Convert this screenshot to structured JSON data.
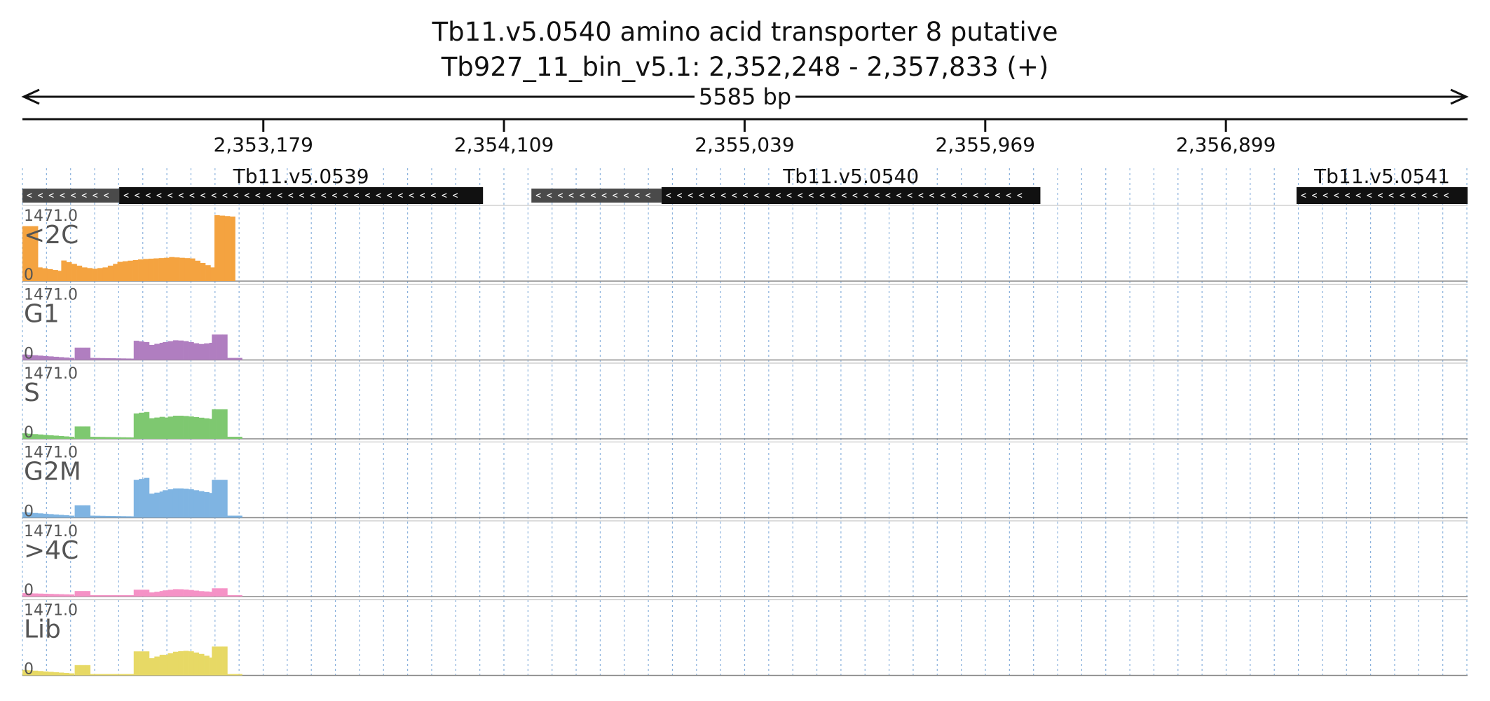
{
  "title_line1": "Tb11.v5.0540  amino acid transporter 8  putative",
  "title_line2": "Tb927_11_bin_v5.1: 2,352,248 - 2,357,833 (+)",
  "chart_data": {
    "type": "area",
    "region": {
      "chrom": "Tb927_11_bin_v5.1",
      "start": 2352248,
      "end": 2357833,
      "strand": "+",
      "length_label": "5585 bp"
    },
    "axis_ticks": [
      {
        "pos": 2353179,
        "label": "2,353,179"
      },
      {
        "pos": 2354109,
        "label": "2,354,109"
      },
      {
        "pos": 2355039,
        "label": "2,355,039"
      },
      {
        "pos": 2355969,
        "label": "2,355,969"
      },
      {
        "pos": 2356899,
        "label": "2,356,899"
      }
    ],
    "genes": [
      {
        "label": "Tb11.v5.0539",
        "strand": "-",
        "utr": [
          2352248,
          2352622
        ],
        "cds": [
          2352622,
          2354028
        ]
      },
      {
        "label": "Tb11.v5.0540",
        "strand": "-",
        "utr": [
          2354215,
          2354718
        ],
        "cds": [
          2354718,
          2356182
        ]
      },
      {
        "label": "Tb11.v5.0541",
        "strand": "-",
        "utr": [],
        "cds": [
          2357172,
          2357833
        ]
      }
    ],
    "y_max": 1471.0,
    "y_max_label": "1471.0",
    "y_min_label": "0",
    "bin_bp": 20,
    "tracks": [
      {
        "name": "<2C",
        "color": "#f4a340",
        "segments": [
          [
            2352248,
            2352305,
            [
              8,
              8
            ]
          ],
          [
            2352305,
            2352398,
            [
              2,
              1.5
            ]
          ],
          [
            2352398,
            2352615,
            [
              3,
              2.5,
              2,
              1.8,
              2,
              2.5
            ]
          ],
          [
            2352615,
            2352815,
            [
              2.8,
              3.2,
              3.4
            ]
          ],
          [
            2352815,
            2352990,
            [
              3.5,
              3.3,
              2
            ]
          ],
          [
            2352990,
            2353060,
            [
              9.6,
              9.4
            ]
          ]
        ]
      },
      {
        "name": "G1",
        "color": "#b07ec0",
        "segments": [
          [
            2352248,
            2352450,
            [
              0.8,
              0.3
            ]
          ],
          [
            2352450,
            2352508,
            [
              1.8,
              1.8
            ]
          ],
          [
            2352508,
            2352678,
            [
              0.3,
              0.2
            ]
          ],
          [
            2352678,
            2352738,
            [
              2.8,
              2.6
            ]
          ],
          [
            2352738,
            2352790,
            [
              2.2,
              2.5
            ]
          ],
          [
            2352790,
            2352980,
            [
              2.6,
              2.9,
              2.7,
              2.3,
              2.5
            ]
          ],
          [
            2352980,
            2353037,
            [
              3.7,
              3.7
            ]
          ],
          [
            2353037,
            2353090,
            [
              0.3,
              0.3
            ]
          ]
        ]
      },
      {
        "name": "S",
        "color": "#7ec870",
        "segments": [
          [
            2352248,
            2352450,
            [
              0.8,
              0.3
            ]
          ],
          [
            2352450,
            2352508,
            [
              1.8,
              1.8
            ]
          ],
          [
            2352508,
            2352678,
            [
              0.3,
              0.2
            ]
          ],
          [
            2352678,
            2352738,
            [
              3.7,
              3.9
            ]
          ],
          [
            2352738,
            2352790,
            [
              3.0,
              3.2
            ]
          ],
          [
            2352790,
            2352980,
            [
              3.1,
              3.4,
              3.3,
              3.1,
              2.9
            ]
          ],
          [
            2352980,
            2353037,
            [
              4.3,
              4.3
            ]
          ],
          [
            2353037,
            2353090,
            [
              0.3,
              0.3
            ]
          ]
        ]
      },
      {
        "name": "G2M",
        "color": "#7fb4e2",
        "segments": [
          [
            2352248,
            2352450,
            [
              0.8,
              0.3
            ]
          ],
          [
            2352450,
            2352508,
            [
              1.8,
              1.8
            ]
          ],
          [
            2352508,
            2352678,
            [
              0.3,
              0.2
            ]
          ],
          [
            2352678,
            2352738,
            [
              5.5,
              5.8
            ]
          ],
          [
            2352738,
            2352790,
            [
              3.5,
              3.8
            ]
          ],
          [
            2352790,
            2352980,
            [
              4.0,
              4.3,
              4.2,
              3.9,
              3.6
            ]
          ],
          [
            2352980,
            2353037,
            [
              5.5,
              5.5
            ]
          ],
          [
            2353037,
            2353090,
            [
              0.3,
              0.3
            ]
          ]
        ]
      },
      {
        "name": ">4C",
        "color": "#f592c6",
        "segments": [
          [
            2352248,
            2352450,
            [
              0.5,
              0.3
            ]
          ],
          [
            2352450,
            2352508,
            [
              0.8,
              0.8
            ]
          ],
          [
            2352508,
            2352678,
            [
              0.2,
              0.2
            ]
          ],
          [
            2352678,
            2352738,
            [
              1.0,
              1.0
            ]
          ],
          [
            2352738,
            2352790,
            [
              0.6,
              0.8
            ]
          ],
          [
            2352790,
            2352980,
            [
              0.9,
              1.1,
              1.0,
              0.8,
              0.7
            ]
          ],
          [
            2352980,
            2353037,
            [
              1.2,
              1.2
            ]
          ],
          [
            2353037,
            2353090,
            [
              0.2,
              0.2
            ]
          ]
        ]
      },
      {
        "name": "Lib",
        "color": "#e7d965",
        "segments": [
          [
            2352248,
            2352450,
            [
              0.8,
              0.3
            ]
          ],
          [
            2352450,
            2352508,
            [
              1.5,
              1.5
            ]
          ],
          [
            2352508,
            2352678,
            [
              0.2,
              0.2
            ]
          ],
          [
            2352678,
            2352738,
            [
              3.5,
              3.5
            ]
          ],
          [
            2352738,
            2352790,
            [
              2.5,
              3.0
            ]
          ],
          [
            2352790,
            2352980,
            [
              3.0,
              3.5,
              3.6,
              3.2,
              2.6
            ]
          ],
          [
            2352980,
            2353037,
            [
              4.2,
              4.2
            ]
          ],
          [
            2353037,
            2353090,
            [
              0.2,
              0.2
            ]
          ]
        ]
      }
    ]
  }
}
